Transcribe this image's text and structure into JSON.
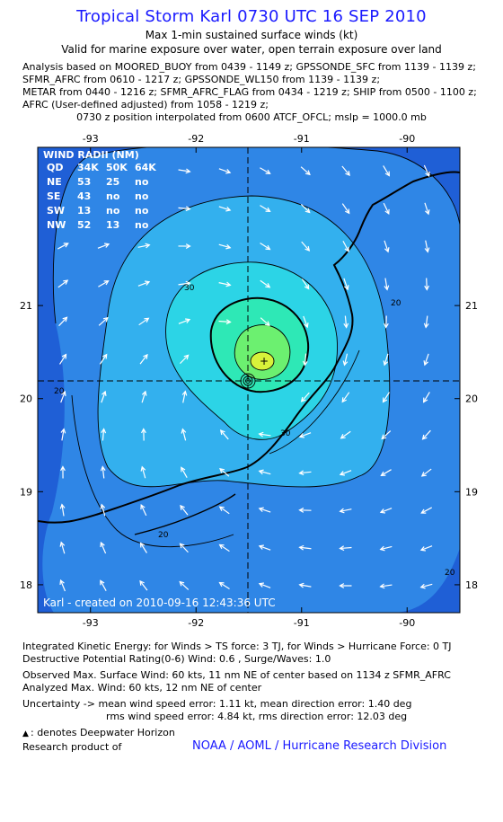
{
  "header": {
    "title": "Tropical Storm Karl 0730 UTC 16 SEP 2010",
    "subtitle1": "Max 1-min sustained surface winds (kt)",
    "subtitle2": "Valid for marine exposure over water, open terrain exposure over land"
  },
  "analysis_lines": [
    "Analysis based on MOORED_BUOY from 0439 - 1149 z; GPSSONDE_SFC from 1139 - 1139 z;",
    "SFMR_AFRC from 0610 - 1217 z; GPSSONDE_WL150 from 1139 - 1139 z;",
    "METAR from 0440 - 1216 z; SFMR_AFRC_FLAG from 0434 - 1219 z; SHIP from 0500 - 1100 z;",
    "AFRC (User-defined adjusted) from 1058 - 1219 z;"
  ],
  "position_note": "0730 z position interpolated from 0600 ATCF_OFCL; mslp = 1000.0 mb",
  "chart_data": {
    "type": "contour-map",
    "storm": "Tropical Storm Karl",
    "center": {
      "lon": -91.45,
      "lat": 19.68
    },
    "xlim": [
      -93.5,
      -89.5
    ],
    "ylim": [
      17.7,
      22.7
    ],
    "x_ticks": [
      "-93",
      "-92",
      "-91",
      "-90"
    ],
    "y_ticks": [
      "18",
      "19",
      "20",
      "21"
    ],
    "contour_labels": [
      "30",
      "30",
      "20",
      "20",
      "20",
      "20"
    ],
    "colors": {
      "ocean_outer": "#1f5fd6",
      "wind_20": "#2f86e6",
      "wind_30": "#33b0ee",
      "wind_40": "#2cd4e6",
      "wind_50": "#2ee8b6",
      "wind_55": "#6cf070",
      "wind_60": "#d8f23a"
    },
    "wind_radii": {
      "header": "WIND RADII (NM)",
      "columns": [
        "QD",
        "34K",
        "50K",
        "64K"
      ],
      "rows": [
        [
          "NE",
          "53",
          "25",
          "no"
        ],
        [
          "SE",
          "43",
          "no",
          "no"
        ],
        [
          "SW",
          "13",
          "no",
          "no"
        ],
        [
          "NW",
          "52",
          "13",
          "no"
        ]
      ]
    },
    "credit": "Karl - created on 2010-09-16 12:43:36 UTC"
  },
  "footer": {
    "ike": "Integrated Kinetic Energy:  for Winds > TS force: 3 TJ,  for Winds > Hurricane Force: 0 TJ",
    "dpr": "Destructive Potential Rating(0-6)   Wind: 0.6 , Surge/Waves: 1.0",
    "obs_max": "Observed Max. Surface Wind: 60 kts, 11 nm NE of center based on 1134 z SFMR_AFRC",
    "ana_max": "Analyzed Max. Wind: 60 kts, 12 nm NE of center",
    "unc1": "Uncertainty -> mean wind speed error: 1.11 kt,   mean direction error: 1.40 deg",
    "unc2": "rms wind speed error: 4.84 kt,   rms direction error: 12.03 deg",
    "dwh": ": denotes Deepwater Horizon",
    "research": "Research product of",
    "org": "NOAA / AOML / Hurricane Research Division"
  }
}
